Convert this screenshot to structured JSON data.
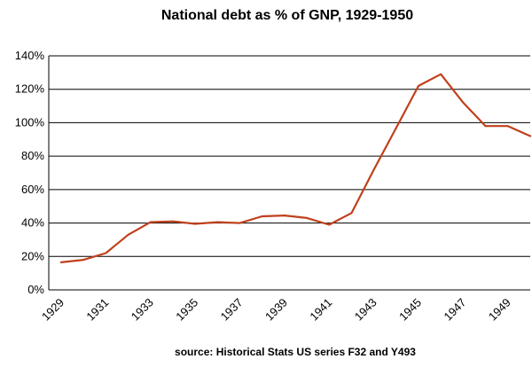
{
  "chart_data": {
    "type": "line",
    "title": "National debt as % of GNP, 1929-1950",
    "source": "source: Historical Stats US  series F32 and Y493",
    "xlabel": "",
    "ylabel": "",
    "xlim": [
      1929,
      1950
    ],
    "ylim": [
      0,
      140
    ],
    "y_tick_labels": [
      "0%",
      "20%",
      "40%",
      "60%",
      "80%",
      "100%",
      "120%",
      "140%"
    ],
    "y_ticks": [
      0,
      20,
      40,
      60,
      80,
      100,
      120,
      140
    ],
    "x_tick_labels": [
      "1929",
      "1931",
      "1933",
      "1935",
      "1937",
      "1939",
      "1941",
      "1943",
      "1945",
      "1947",
      "1949"
    ],
    "x_ticks": [
      1929,
      1931,
      1933,
      1935,
      1937,
      1939,
      1941,
      1943,
      1945,
      1947,
      1949
    ],
    "grid": true,
    "legend": "none",
    "series_color": "#c0401c",
    "series": [
      {
        "x": [
          1929,
          1930,
          1931,
          1932,
          1933,
          1934,
          1935,
          1936,
          1937,
          1938,
          1939,
          1940,
          1941,
          1942,
          1943,
          1944,
          1945,
          1946,
          1947,
          1948,
          1949,
          1950
        ],
        "values": [
          16.5,
          18,
          22,
          33,
          40.5,
          41,
          39.5,
          40.5,
          40,
          44,
          44.5,
          43,
          39,
          46,
          72,
          97,
          122,
          129,
          112,
          98,
          98,
          92
        ]
      }
    ]
  }
}
